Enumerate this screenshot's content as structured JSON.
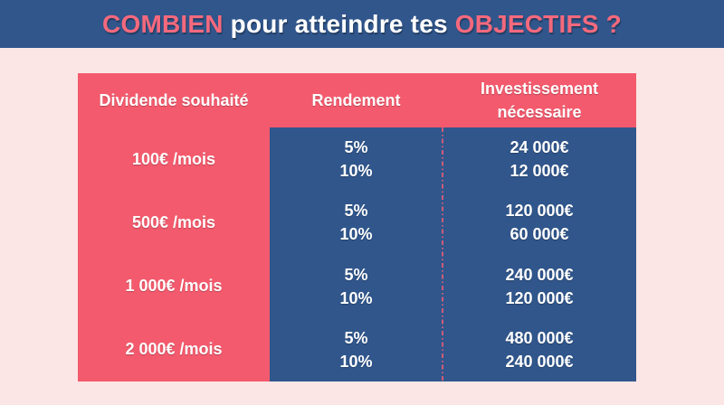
{
  "title_bar": {
    "background": "#30568C",
    "accent_color": "#F5697D",
    "text_color": "#FFFFFF",
    "part1": "COMBIEN",
    "part2": " pour atteindre tes ",
    "part3": "OBJECTIFS ?"
  },
  "table": {
    "colors": {
      "header_bg": "#F45A6D",
      "left_column_bg": "#F45A6D",
      "values_bg": "#30568C",
      "divider": "#E05C77",
      "text": "#FFFFFF",
      "page_bg": "#FBE6E5"
    },
    "header": {
      "col1": "Dividende souhaité",
      "col2": "Rendement",
      "col3": "Investissement nécessaire"
    },
    "rows": [
      {
        "dividend": "100€ /mois",
        "yields": [
          "5%",
          "10%"
        ],
        "investments": [
          "24 000€",
          "12 000€"
        ]
      },
      {
        "dividend": "500€ /mois",
        "yields": [
          "5%",
          "10%"
        ],
        "investments": [
          "120 000€",
          "60 000€"
        ]
      },
      {
        "dividend": "1 000€ /mois",
        "yields": [
          "5%",
          "10%"
        ],
        "investments": [
          "240 000€",
          "120 000€"
        ]
      },
      {
        "dividend": "2 000€ /mois",
        "yields": [
          "5%",
          "10%"
        ],
        "investments": [
          "480 000€",
          "240 000€"
        ]
      }
    ]
  },
  "chart_data": {
    "type": "table",
    "title": "COMBIEN pour atteindre tes OBJECTIFS ?",
    "columns": [
      "Dividende souhaité",
      "Rendement",
      "Investissement nécessaire"
    ],
    "rows": [
      [
        "100€ /mois",
        "5%",
        "24 000€"
      ],
      [
        "100€ /mois",
        "10%",
        "12 000€"
      ],
      [
        "500€ /mois",
        "5%",
        "120 000€"
      ],
      [
        "500€ /mois",
        "10%",
        "60 000€"
      ],
      [
        "1 000€ /mois",
        "5%",
        "240 000€"
      ],
      [
        "1 000€ /mois",
        "10%",
        "120 000€"
      ],
      [
        "2 000€ /mois",
        "5%",
        "480 000€"
      ],
      [
        "2 000€ /mois",
        "10%",
        "240 000€"
      ]
    ]
  }
}
